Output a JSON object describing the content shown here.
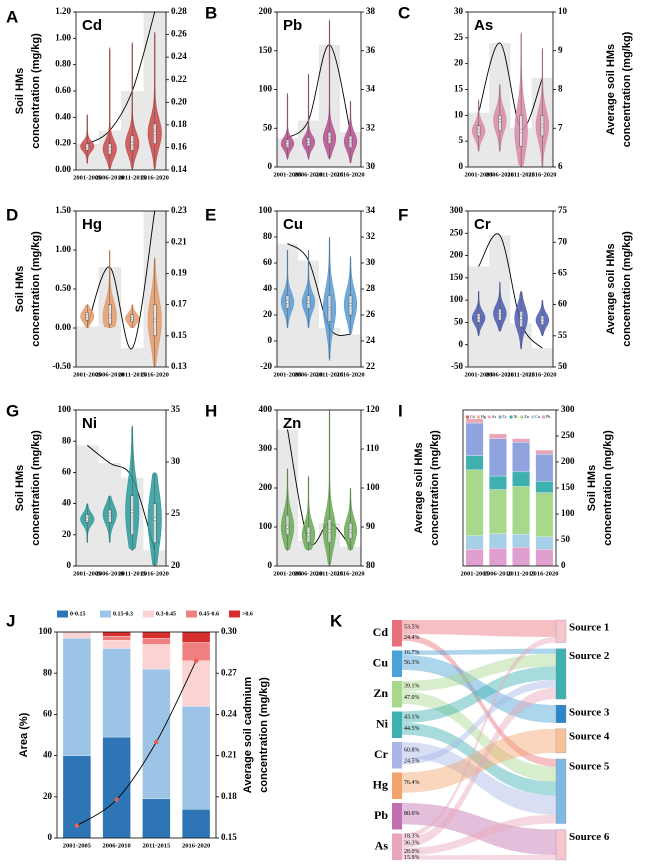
{
  "chart_data": [
    {
      "type": "violin",
      "panel": "A",
      "title": "Cd",
      "categories": [
        "2001-2005",
        "2006-2010",
        "2011-2015",
        "2016-2020"
      ],
      "ylabel": [
        "Soil HMs",
        "concentration (mg/kg)"
      ],
      "ylim": [
        0,
        1.2
      ],
      "yticks": [
        {
          "value": 0,
          "label": "0.00"
        },
        {
          "value": 0.2,
          "label": "0.20"
        },
        {
          "value": 0.4,
          "label": "0.40"
        },
        {
          "value": 0.6,
          "label": "0.60"
        },
        {
          "value": 0.8,
          "label": "0.80"
        },
        {
          "value": 1,
          "label": "1.00"
        },
        {
          "value": 1.2,
          "label": "1.20"
        }
      ],
      "y2lim": [
        0.14,
        0.28
      ],
      "y2ticks": [
        0.14,
        0.16,
        0.18,
        {
          "value": 0.2,
          "label": "0.20"
        },
        0.22,
        0.24,
        0.26,
        0.28
      ],
      "bars": [
        0.163,
        0.175,
        0.21,
        0.28
      ],
      "bar_color": "#e8e8e8",
      "curve_color": "#000000",
      "color": "#c94a4a",
      "min": [
        0.05,
        0.0,
        0.0,
        0.0
      ],
      "q1": [
        0.15,
        0.12,
        0.15,
        0.2
      ],
      "median": [
        0.18,
        0.16,
        0.2,
        0.28
      ],
      "q3": [
        0.2,
        0.2,
        0.26,
        0.35
      ],
      "max": [
        0.42,
        0.93,
        0.97,
        1.05
      ]
    },
    {
      "type": "violin",
      "panel": "B",
      "title": "Pb",
      "categories": [
        "2001-2005",
        "2006-2010",
        "2011-2015",
        "2016-2020"
      ],
      "ylim": [
        0,
        200
      ],
      "yticks": [
        0,
        50,
        100,
        150,
        200
      ],
      "y2lim": [
        30,
        38
      ],
      "y2ticks": [
        30,
        32,
        34,
        36,
        38
      ],
      "bars": [
        31.5,
        32.4,
        36.3,
        31.8
      ],
      "bar_color": "#e8e8e8",
      "curve_color": "#000000",
      "color": "#b5508f",
      "min": [
        10,
        10,
        10,
        5
      ],
      "q1": [
        25,
        27,
        30,
        25
      ],
      "median": [
        30,
        32,
        37,
        33
      ],
      "q3": [
        35,
        38,
        45,
        40
      ],
      "max": [
        95,
        120,
        190,
        85
      ]
    },
    {
      "type": "violin",
      "panel": "C",
      "title": "As",
      "categories": [
        "2001-2005",
        "2006-2010",
        "2011-2015",
        "2016-2020"
      ],
      "y2label": [
        "Average soil HMs",
        "concentration (mg/kg)"
      ],
      "ylim": [
        0,
        30
      ],
      "yticks": [
        0,
        5,
        10,
        15,
        20,
        25,
        30
      ],
      "y2lim": [
        6,
        10
      ],
      "y2ticks": [
        6,
        7,
        8,
        9,
        10
      ],
      "bars": [
        7.4,
        9.2,
        7.0,
        8.3
      ],
      "bar_color": "#e8e8e8",
      "curve_color": "#000000",
      "color": "#d98aa8",
      "min": [
        3,
        3,
        0,
        0
      ],
      "q1": [
        6,
        7,
        4,
        6
      ],
      "median": [
        7,
        9,
        7,
        8
      ],
      "q3": [
        8,
        10,
        10,
        10
      ],
      "max": [
        13,
        16,
        26,
        23
      ]
    },
    {
      "type": "violin",
      "panel": "D",
      "title": "Hg",
      "categories": [
        "2001-2005",
        "2006-2010",
        "2011-2015",
        "2016-2020"
      ],
      "ylabel": [
        "Soil HMs",
        "concentration (mg/kg)"
      ],
      "ylim": [
        -0.5,
        1.5
      ],
      "yticks": [
        {
          "value": -0.5,
          "label": "-0.50"
        },
        {
          "value": 0,
          "label": "0.00"
        },
        {
          "value": 0.5,
          "label": "0.50"
        },
        {
          "value": 1,
          "label": "1.00"
        },
        {
          "value": 1.5,
          "label": "1.50"
        }
      ],
      "y2lim": [
        0.13,
        0.23
      ],
      "y2ticks": [
        0.13,
        0.15,
        0.17,
        0.19,
        0.21,
        0.23
      ],
      "bars": [
        0.156,
        0.194,
        0.142,
        0.23
      ],
      "bar_color": "#e8e8e8",
      "curve_color": "#000000",
      "color": "#e49b6b",
      "min": [
        0,
        0,
        0,
        -0.5
      ],
      "q1": [
        0.1,
        0.05,
        0.08,
        -0.1
      ],
      "median": [
        0.15,
        0.15,
        0.12,
        0.1
      ],
      "q3": [
        0.2,
        0.3,
        0.17,
        0.3
      ],
      "max": [
        0.3,
        1.0,
        0.3,
        0.9
      ]
    },
    {
      "type": "violin",
      "panel": "E",
      "title": "Cu",
      "categories": [
        "2001-2005",
        "2006-2010",
        "2011-2015",
        "2016-2020"
      ],
      "ylim": [
        -20,
        100
      ],
      "yticks": [
        -20,
        0,
        20,
        40,
        60,
        80,
        100
      ],
      "y2lim": [
        22,
        34
      ],
      "y2ticks": [
        22,
        24,
        26,
        28,
        30,
        32,
        34
      ],
      "bars": [
        31.5,
        30.2,
        25.0,
        24.5
      ],
      "bar_color": "#e8e8e8",
      "curve_color": "#000000",
      "color": "#5b9bd5",
      "min": [
        10,
        10,
        -15,
        5
      ],
      "q1": [
        25,
        25,
        15,
        20
      ],
      "median": [
        30,
        30,
        25,
        28
      ],
      "q3": [
        35,
        35,
        35,
        35
      ],
      "max": [
        70,
        70,
        80,
        65
      ]
    },
    {
      "type": "violin",
      "panel": "F",
      "title": "Cr",
      "categories": [
        "2001-2005",
        "2006-2010",
        "2011-2015",
        "2016-2020"
      ],
      "y2label": [
        "Average soil HMs",
        "concentration (mg/kg)"
      ],
      "ylim": [
        -50,
        300
      ],
      "yticks": [
        -50,
        0,
        50,
        100,
        150,
        200,
        250,
        300
      ],
      "y2lim": [
        50,
        75
      ],
      "y2ticks": [
        50,
        55,
        60,
        65,
        70,
        75
      ],
      "bars": [
        66.1,
        71.1,
        57.0,
        53.0
      ],
      "bar_color": "#e8e8e8",
      "curve_color": "#000000",
      "color": "#4a5bb3",
      "min": [
        20,
        30,
        -10,
        20
      ],
      "q1": [
        50,
        55,
        40,
        45
      ],
      "median": [
        60,
        70,
        60,
        55
      ],
      "q3": [
        70,
        80,
        75,
        65
      ],
      "max": [
        120,
        140,
        120,
        100
      ]
    },
    {
      "type": "violin",
      "panel": "G",
      "title": "Ni",
      "categories": [
        "2001-2005",
        "2006-2010",
        "2011-2015",
        "2016-2020"
      ],
      "ylabel": [
        "Soil HMs",
        "concentration (mg/kg)"
      ],
      "ylim": [
        0,
        100
      ],
      "yticks": [
        0,
        20,
        40,
        60,
        80,
        100
      ],
      "y2lim": [
        20,
        35
      ],
      "y2ticks": [
        20,
        25,
        30,
        35
      ],
      "bars": [
        31.6,
        29.9,
        28.5,
        21.5
      ],
      "bar_color": "#e8e8e8",
      "curve_color": "#000000",
      "color": "#2a9a9a",
      "min": [
        15,
        15,
        10,
        0
      ],
      "q1": [
        28,
        28,
        20,
        15
      ],
      "median": [
        30,
        33,
        35,
        30
      ],
      "q3": [
        33,
        36,
        45,
        40
      ],
      "max": [
        40,
        45,
        90,
        60
      ]
    },
    {
      "type": "violin",
      "panel": "H",
      "title": "Zn",
      "categories": [
        "2001-2005",
        "2006-2010",
        "2011-2015",
        "2016-2020"
      ],
      "y2label": [
        "Average soil HMs",
        "concentration (mg/kg)"
      ],
      "ylim": [
        0,
        400
      ],
      "yticks": [
        0,
        100,
        200,
        300,
        400
      ],
      "y2lim": [
        80,
        120
      ],
      "y2ticks": [
        80,
        90,
        100,
        110,
        120
      ],
      "bars": [
        115,
        86.5,
        91,
        85
      ],
      "bar_color": "#e8e8e8",
      "curve_color": "#000000",
      "color": "#6aaa55",
      "min": [
        40,
        40,
        0,
        40
      ],
      "q1": [
        80,
        60,
        60,
        70
      ],
      "median": [
        100,
        80,
        90,
        90
      ],
      "q3": [
        130,
        100,
        120,
        110
      ],
      "max": [
        250,
        230,
        400,
        200
      ]
    },
    {
      "type": "bar",
      "panel": "I",
      "stacked": true,
      "stack_order": "reversed",
      "y_axis_side": "right",
      "categories": [
        "2001-2005",
        "2006-2010",
        "2011-2015",
        "2016-2020"
      ],
      "ylabel": [
        "Soil HMs",
        "concentration (mg/kg)"
      ],
      "ylim": [
        0,
        300
      ],
      "yticks": [
        0,
        50,
        100,
        150,
        200,
        250,
        300
      ],
      "series": [
        {
          "name": "Cd",
          "color": "#e8604c",
          "values": [
            0.2,
            0.2,
            0.2,
            0.2
          ]
        },
        {
          "name": "Hg",
          "color": "#f2b48c",
          "values": [
            0.5,
            0.5,
            0.5,
            0.5
          ]
        },
        {
          "name": "As",
          "color": "#e8a6b8",
          "values": [
            8,
            9,
            7,
            8
          ]
        },
        {
          "name": "Cr",
          "color": "#8fa3df",
          "values": [
            63,
            72,
            57,
            52
          ]
        },
        {
          "name": "Ni",
          "color": "#3fb0b0",
          "values": [
            27,
            26,
            28,
            22
          ]
        },
        {
          "name": "Zn",
          "color": "#a8d88c",
          "values": [
            127,
            85,
            92,
            85
          ]
        },
        {
          "name": "Cu",
          "color": "#a6cfe8",
          "values": [
            26,
            28,
            25,
            24
          ]
        },
        {
          "name": "Pb",
          "color": "#dfa0cf",
          "values": [
            32,
            34,
            36,
            32
          ]
        }
      ]
    },
    {
      "type": "bar",
      "panel": "J",
      "stacked": true,
      "categories": [
        "2001-2005",
        "2006-2010",
        "2011-2015",
        "2016-2020"
      ],
      "ylabel": [
        "Area (%)"
      ],
      "y2label": [
        "Average soil cadmium",
        "concentration (mg/kg)"
      ],
      "ylim": [
        0,
        100
      ],
      "yticks": [
        0,
        20,
        40,
        60,
        80,
        100
      ],
      "y2lim": [
        0.15,
        0.3
      ],
      "y2ticks": [
        0.15,
        0.18,
        0.21,
        0.24,
        0.27,
        {
          "value": 0.3,
          "label": "0.30"
        }
      ],
      "series": [
        {
          "name": "0-0.15",
          "color": "#2e75b6",
          "values": [
            40,
            49,
            19,
            14
          ]
        },
        {
          "name": "0.15-0.3",
          "color": "#9dc3e6",
          "values": [
            57,
            43,
            63,
            50
          ]
        },
        {
          "name": "0.3-0.45",
          "color": "#fbd3d3",
          "values": [
            3,
            4,
            12,
            22
          ]
        },
        {
          "name": "0.45-0.6",
          "color": "#f08080",
          "values": [
            0,
            2,
            3,
            9
          ]
        },
        {
          "name": ">0.6",
          "color": "#d62d2d",
          "values": [
            0,
            2,
            3,
            5
          ]
        }
      ],
      "line": {
        "axis": "y2",
        "color": "#000000",
        "marker_color": "#e8604c",
        "values": [
          0.159,
          0.178,
          0.22,
          0.279
        ]
      }
    },
    {
      "type": "sankey",
      "panel": "K",
      "nodes": [
        {
          "name": "Cd",
          "color": "#e8707a",
          "flows": [
            {
              "target": "Source 1",
              "value": 53.5,
              "label": "53.5%"
            },
            {
              "target": "Source 5",
              "value": 24.4,
              "label": "24.4%"
            }
          ]
        },
        {
          "name": "Cu",
          "color": "#4aa3d8",
          "flows": [
            {
              "target": "Source 2",
              "value": 16.7,
              "label": "16.7%"
            },
            {
              "target": "Source 3",
              "value": 56.3,
              "label": "56.3%"
            }
          ]
        },
        {
          "name": "Zn",
          "color": "#a8d88c",
          "flows": [
            {
              "target": "Source 2",
              "value": 39.1,
              "label": "39.1%"
            },
            {
              "target": "Source 5",
              "value": 47.0,
              "label": "47.0%"
            }
          ]
        },
        {
          "name": "Ni",
          "color": "#3fb0b0",
          "flows": [
            {
              "target": "Source 2",
              "value": 43.1,
              "label": "43.1%"
            },
            {
              "target": "Source 5",
              "value": 44.5,
              "label": "44.5%"
            }
          ]
        },
        {
          "name": "Cr",
          "color": "#a9b6e6",
          "flows": [
            {
              "target": "Source 5",
              "value": 60.8,
              "label": "60.8%"
            },
            {
              "target": "Source 2",
              "value": 24.5,
              "label": "24.5%"
            }
          ]
        },
        {
          "name": "Hg",
          "color": "#f2a46c",
          "flows": [
            {
              "target": "Source 4",
              "value": 76.4,
              "label": "76.4%"
            }
          ]
        },
        {
          "name": "Pb",
          "color": "#c070b0",
          "flows": [
            {
              "target": "Source 6",
              "value": 80.6,
              "label": "80.6%"
            }
          ]
        },
        {
          "name": "As",
          "color": "#e8a6b8",
          "flows": [
            {
              "target": "Source 1",
              "value": 18.3,
              "label": "18.3%"
            },
            {
              "target": "Source 2",
              "value": 36.3,
              "label": "36.3%"
            },
            {
              "target": "Source 5",
              "value": 28.0,
              "label": "28.0%"
            },
            {
              "target": "Source 6",
              "value": 15.9,
              "label": "15.9%"
            }
          ]
        }
      ],
      "targets": [
        {
          "name": "Source 1",
          "color": "#f6c6d0"
        },
        {
          "name": "Source 2",
          "color": "#3fb0b0"
        },
        {
          "name": "Source 3",
          "color": "#2e86c8"
        },
        {
          "name": "Source 4",
          "color": "#f7c29b"
        },
        {
          "name": "Source 5",
          "color": "#7fb8e0"
        },
        {
          "name": "Source 6",
          "color": "#f6c6d0"
        }
      ]
    }
  ]
}
